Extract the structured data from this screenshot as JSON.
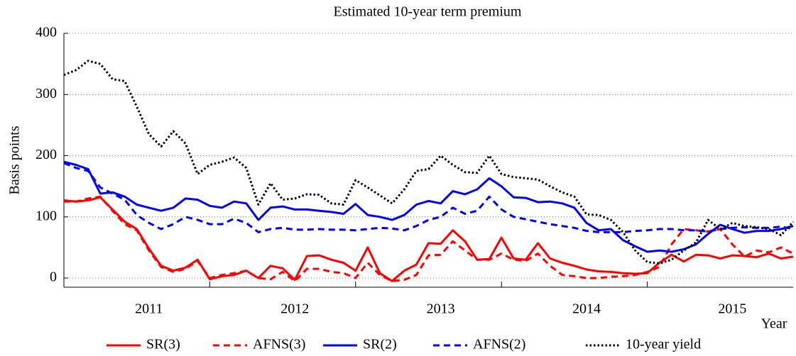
{
  "chart_data": {
    "type": "line",
    "title": "Estimated 10-year term premium",
    "y_label": "Basis points",
    "x_label": "Year",
    "categories": [
      null,
      null,
      null,
      null,
      null,
      null,
      null,
      "2011",
      null,
      null,
      null,
      null,
      null,
      null,
      null,
      null,
      null,
      null,
      null,
      "2012",
      null,
      null,
      null,
      null,
      null,
      null,
      null,
      null,
      null,
      null,
      null,
      "2013",
      null,
      null,
      null,
      null,
      null,
      null,
      null,
      null,
      null,
      null,
      null,
      "2014",
      null,
      null,
      null,
      null,
      null,
      null,
      null,
      null,
      null,
      null,
      null,
      "2015",
      null,
      null,
      null,
      null,
      null
    ],
    "ylim": [
      -15,
      400
    ],
    "yticks": [
      0,
      100,
      200,
      300,
      400
    ],
    "grid": true,
    "series": [
      {
        "name": "SR(3)",
        "color": "#ff0000",
        "linestyle": "solid",
        "values": [
          127,
          125,
          127,
          132,
          112,
          92,
          80,
          48,
          20,
          12,
          17,
          30,
          -2,
          3,
          5,
          12,
          0,
          20,
          16,
          -3,
          36,
          37,
          30,
          25,
          12,
          50,
          8,
          -5,
          12,
          22,
          57,
          56,
          78,
          60,
          30,
          31,
          66,
          32,
          30,
          57,
          32,
          25,
          20,
          14,
          11,
          10,
          8,
          7,
          8,
          25,
          38,
          27,
          38,
          37,
          32,
          37,
          36,
          34,
          40,
          32,
          35
        ]
      },
      {
        "name": "AFNS(3)",
        "color": "#ff0000",
        "linestyle": "dashed",
        "values": [
          125,
          125,
          130,
          133,
          110,
          88,
          78,
          45,
          18,
          10,
          15,
          28,
          0,
          5,
          8,
          12,
          0,
          -2,
          10,
          -5,
          15,
          15,
          10,
          8,
          0,
          25,
          5,
          -5,
          -3,
          5,
          37,
          38,
          60,
          45,
          30,
          30,
          40,
          30,
          28,
          40,
          20,
          5,
          3,
          0,
          0,
          2,
          3,
          5,
          10,
          18,
          55,
          80,
          78,
          76,
          80,
          55,
          35,
          45,
          42,
          50,
          40
        ]
      },
      {
        "name": "SR(2)",
        "color": "#0000ff",
        "linestyle": "solid",
        "values": [
          190,
          185,
          178,
          138,
          140,
          133,
          120,
          115,
          110,
          115,
          130,
          128,
          118,
          115,
          125,
          122,
          95,
          115,
          117,
          112,
          112,
          110,
          108,
          105,
          121,
          103,
          100,
          95,
          103,
          120,
          126,
          122,
          142,
          137,
          145,
          163,
          150,
          132,
          131,
          124,
          125,
          122,
          115,
          90,
          78,
          80,
          62,
          52,
          43,
          45,
          43,
          47,
          55,
          72,
          87,
          80,
          74,
          77,
          77,
          80,
          85
        ]
      },
      {
        "name": "AFNS(2)",
        "color": "#0000ff",
        "linestyle": "dashed",
        "values": [
          188,
          180,
          175,
          148,
          138,
          128,
          103,
          90,
          80,
          88,
          100,
          95,
          88,
          88,
          97,
          90,
          75,
          80,
          82,
          79,
          79,
          80,
          79,
          79,
          78,
          80,
          82,
          81,
          78,
          85,
          95,
          100,
          115,
          105,
          110,
          133,
          112,
          100,
          96,
          92,
          88,
          85,
          82,
          77,
          75,
          75,
          75,
          77,
          78,
          80,
          80,
          78,
          78,
          76,
          80,
          82,
          83,
          82,
          82,
          84,
          80
        ]
      },
      {
        "name": "10-year yield",
        "color": "#000000",
        "linestyle": "dotted",
        "values": [
          332,
          340,
          355,
          350,
          325,
          322,
          280,
          235,
          215,
          240,
          220,
          170,
          185,
          190,
          197,
          180,
          120,
          155,
          128,
          130,
          137,
          136,
          122,
          120,
          160,
          148,
          135,
          122,
          145,
          175,
          178,
          200,
          185,
          173,
          172,
          200,
          170,
          165,
          163,
          161,
          150,
          140,
          133,
          104,
          103,
          95,
          75,
          45,
          26,
          24,
          30,
          45,
          58,
          95,
          80,
          90,
          85,
          83,
          80,
          70,
          92
        ]
      }
    ]
  }
}
